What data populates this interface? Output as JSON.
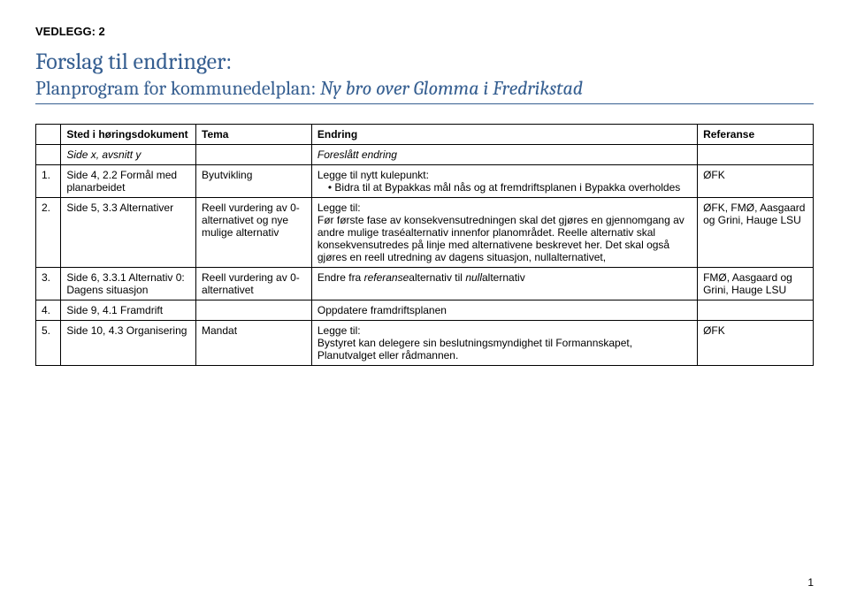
{
  "header": {
    "vedlegg": "VEDLEGG: 2",
    "title": "Forslag til endringer:",
    "subtitle_plain": "Planprogram for kommunedelplan: ",
    "subtitle_italic": "Ny bro over Glomma i Fredrikstad"
  },
  "table": {
    "head": {
      "col0": "",
      "col1": "Sted i høringsdokument",
      "col2": "Tema",
      "col3": "Endring",
      "col4": "Referanse"
    },
    "subhead": {
      "col0": "",
      "col1": "Side x, avsnitt y",
      "col2": "",
      "col3": "Foreslått endring",
      "col4": ""
    },
    "rows": [
      {
        "num": "1.",
        "sted": "Side 4, 2.2 Formål med planarbeidet",
        "tema": "Byutvikling",
        "endring_pre": "Legge til nytt kulepunkt:",
        "endring_bullet": "Bidra til at Bypakkas mål nås og at fremdriftsplanen i Bypakka overholdes",
        "ref": "ØFK"
      },
      {
        "num": "2.",
        "sted": "Side 5, 3.3 Alternativer",
        "tema": "Reell vurdering av 0-alternativet og nye mulige alternativ",
        "endring_pre": "Legge til:",
        "endring_body": "Før første fase av konsekvensutredningen skal det gjøres en gjennomgang av andre mulige traséalternativ innenfor planområdet. Reelle alternativ skal konsekvensutredes på linje med alternativene beskrevet her. Det skal også gjøres en reell utredning av dagens situasjon, nullalternativet,",
        "ref": "ØFK, FMØ, Aasgaard og Grini, Hauge LSU"
      },
      {
        "num": "3.",
        "sted": "Side 6, 3.3.1 Alternativ 0: Dagens situasjon",
        "tema": "Reell vurdering av 0-alternativet",
        "endring_pref": "Endre fra ",
        "endring_it1": "referanse",
        "endring_mid": "alternativ til ",
        "endring_it2": "null",
        "endring_suf": "alternativ",
        "ref": "FMØ, Aasgaard og Grini, Hauge LSU"
      },
      {
        "num": "4.",
        "sted": "Side 9, 4.1 Framdrift",
        "tema": "",
        "endring_body": "Oppdatere framdriftsplanen",
        "ref": ""
      },
      {
        "num": "5.",
        "sted": "Side 10, 4.3 Organisering",
        "tema": "Mandat",
        "endring_pre": "Legge til:",
        "endring_body": "Bystyret kan delegere sin beslutningsmyndighet til Formannskapet, Planutvalget eller rådmannen.",
        "ref": "ØFK"
      }
    ]
  },
  "page_number": "1",
  "styling": {
    "title_color": "#365f91",
    "border_color": "#000000",
    "background": "#ffffff",
    "body_font_size_pt": 12,
    "title_font_size_pt": 26,
    "subtitle_font_size_pt": 22
  }
}
